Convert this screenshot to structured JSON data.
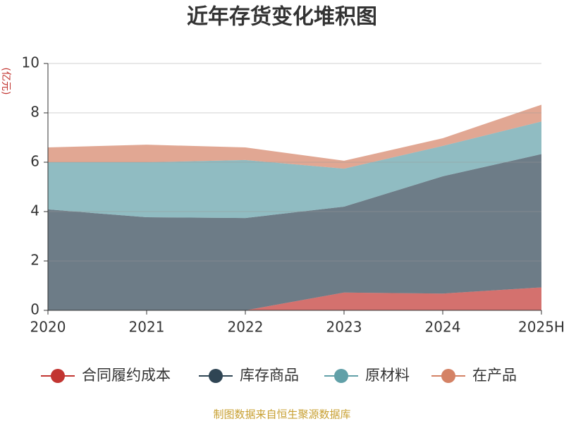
{
  "chart_data": {
    "type": "stacked-area",
    "title": "近年存货变化堆积图",
    "y_label": "(亿元)",
    "source": "制图数据来自恒生聚源数据库",
    "categories": [
      "2020",
      "2021",
      "2022",
      "2023",
      "2024",
      "2025H"
    ],
    "series": [
      {
        "name": "合同履约成本",
        "color": "#c23531",
        "values": [
          0,
          0,
          0,
          0.72,
          0.68,
          0.93
        ]
      },
      {
        "name": "库存商品",
        "color": "#2f4554",
        "values": [
          4.09,
          3.77,
          3.74,
          3.48,
          4.75,
          5.4
        ]
      },
      {
        "name": "原材料",
        "color": "#61a0a8",
        "values": [
          1.91,
          2.23,
          2.35,
          1.54,
          1.23,
          1.32
        ]
      },
      {
        "name": "在产品",
        "color": "#d48265",
        "values": [
          0.6,
          0.71,
          0.51,
          0.32,
          0.31,
          0.68
        ]
      }
    ],
    "ylim": [
      0,
      10
    ],
    "yticks": [
      0,
      2,
      4,
      6,
      8,
      10
    ],
    "grid": true
  }
}
